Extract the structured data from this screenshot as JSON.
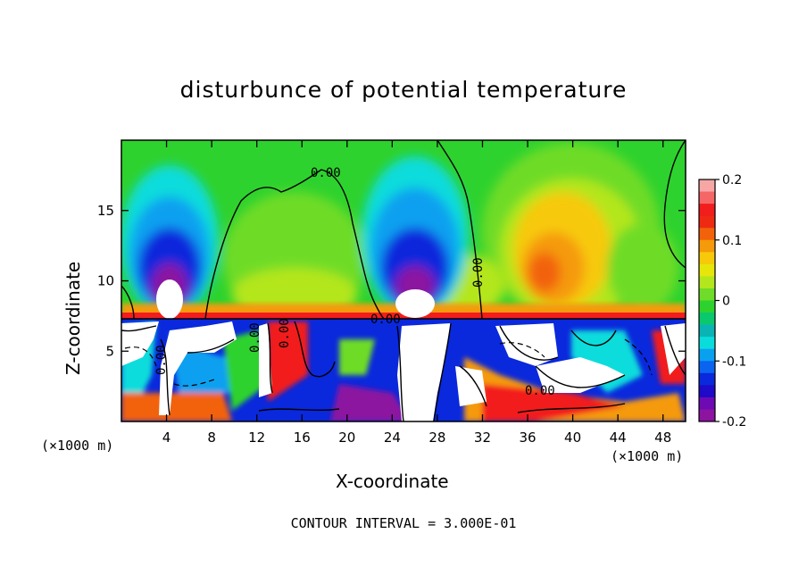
{
  "chart_data": {
    "type": "heatmap",
    "title": "disturbunce of potential temperature",
    "xlabel": "X-coordinate",
    "ylabel": "Z-coordinate",
    "x_unit_left": "(×1000 m)",
    "x_unit_right": "(×1000 m)",
    "xlim": [
      0,
      50
    ],
    "ylim": [
      0,
      20
    ],
    "x_ticks": [
      4,
      8,
      12,
      16,
      20,
      24,
      28,
      32,
      36,
      40,
      44,
      48
    ],
    "y_ticks": [
      5,
      10,
      15
    ],
    "colorbar": {
      "range": [
        -0.2,
        0.2
      ],
      "ticks": [
        "0.2",
        "0.1",
        "0",
        "-0.1",
        "-0.2"
      ],
      "colors": [
        "#f7a6a6",
        "#f56767",
        "#f21d1d",
        "#ee2a12",
        "#f2620a",
        "#f59a0a",
        "#f7c90a",
        "#e6e60a",
        "#b4e61e",
        "#6edc28",
        "#2ed22e",
        "#0ac86e",
        "#0ab4b4",
        "#0adcdc",
        "#0aa0f0",
        "#0a64f0",
        "#0a28dc",
        "#1e0ac8",
        "#6e0ab4",
        "#8c14a0"
      ]
    },
    "contour_labels": [
      "0.00",
      "0.00",
      "0.00",
      "0.00",
      "0.00",
      "0.00",
      "0.00"
    ],
    "contour_interval_text": "CONTOUR INTERVAL = 3.000E-01",
    "description_regions": {
      "upper_layer_z_range": [
        7.3,
        20
      ],
      "lower_layer_z_range": [
        0,
        7.3
      ]
    }
  }
}
